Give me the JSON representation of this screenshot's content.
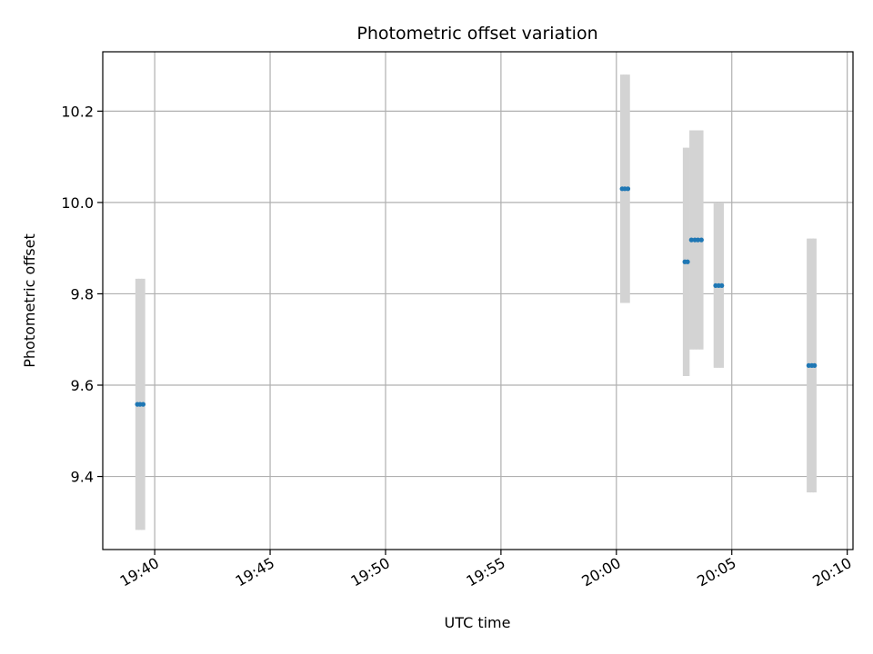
{
  "chart_data": {
    "type": "scatter",
    "title": "Photometric offset variation",
    "xlabel": "UTC time",
    "ylabel": "Photometric offset",
    "x_ticks": [
      "19:40",
      "19:45",
      "19:50",
      "19:55",
      "20:00",
      "20:05",
      "20:10"
    ],
    "x_tick_minutes": [
      0,
      5,
      10,
      15,
      20,
      25,
      30
    ],
    "y_ticks": [
      "9.4",
      "9.6",
      "9.8",
      "10.0",
      "10.2"
    ],
    "y_tick_values": [
      9.4,
      9.6,
      9.8,
      10.0,
      10.2
    ],
    "xlim": [
      "19:37:45",
      "20:10:15"
    ],
    "ylim": [
      9.24,
      10.33
    ],
    "grid": true,
    "colors": {
      "points": "#1f77b4",
      "errorbars": "#d3d3d3",
      "grid": "#b0b0b0"
    },
    "points": [
      {
        "time": "19:39:15",
        "y": 9.558,
        "err": 0.275
      },
      {
        "time": "19:39:22",
        "y": 9.558,
        "err": 0.275
      },
      {
        "time": "19:39:30",
        "y": 9.558,
        "err": 0.275
      },
      {
        "time": "20:00:15",
        "y": 10.03,
        "err": 0.25
      },
      {
        "time": "20:00:22",
        "y": 10.03,
        "err": 0.25
      },
      {
        "time": "20:00:30",
        "y": 10.03,
        "err": 0.25
      },
      {
        "time": "20:02:58",
        "y": 9.87,
        "err": 0.25
      },
      {
        "time": "20:03:05",
        "y": 9.87,
        "err": 0.25
      },
      {
        "time": "20:03:15",
        "y": 9.918,
        "err": 0.24
      },
      {
        "time": "20:03:24",
        "y": 9.918,
        "err": 0.24
      },
      {
        "time": "20:03:32",
        "y": 9.918,
        "err": 0.24
      },
      {
        "time": "20:03:41",
        "y": 9.918,
        "err": 0.24
      },
      {
        "time": "20:04:18",
        "y": 9.818,
        "err": 0.18
      },
      {
        "time": "20:04:26",
        "y": 9.818,
        "err": 0.18
      },
      {
        "time": "20:04:34",
        "y": 9.818,
        "err": 0.18
      },
      {
        "time": "20:08:20",
        "y": 9.643,
        "err": 0.278
      },
      {
        "time": "20:08:28",
        "y": 9.643,
        "err": 0.278
      },
      {
        "time": "20:08:35",
        "y": 9.643,
        "err": 0.278
      }
    ]
  }
}
